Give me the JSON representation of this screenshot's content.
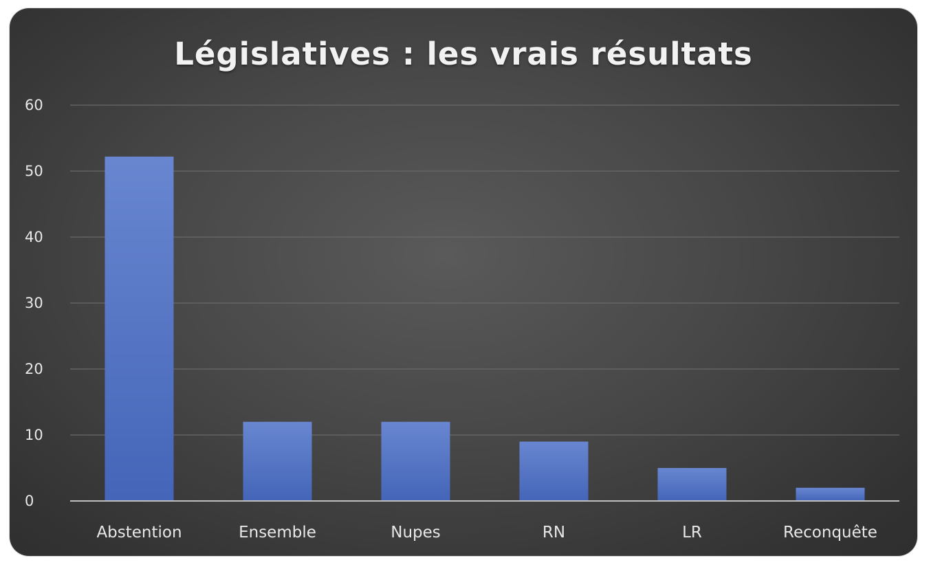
{
  "chart_data": {
    "type": "bar",
    "title": "Législatives : les vrais résultats",
    "categories": [
      "Abstention",
      "Ensemble",
      "Nupes",
      "RN",
      "LR",
      "Reconquête"
    ],
    "values": [
      52.2,
      12,
      12,
      9,
      5,
      2
    ],
    "ylim": [
      0,
      60
    ],
    "yticks": [
      0,
      10,
      20,
      30,
      40,
      50,
      60
    ],
    "grid": true,
    "legend": "none",
    "bar_color": "#4f72c4",
    "background": "dark gradient"
  }
}
